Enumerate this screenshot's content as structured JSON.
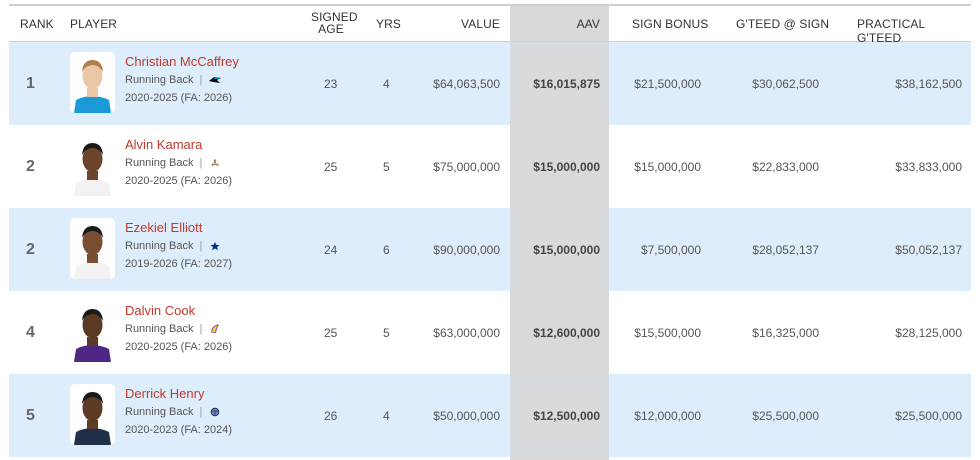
{
  "headers": {
    "rank": "RANK",
    "player": "PLAYER",
    "signed_age_line1": "SIGNED",
    "signed_age_line2": "AGE",
    "yrs": "YRS",
    "value": "VALUE",
    "aav": "AAV",
    "sign_bonus": "SIGN BONUS",
    "gteed_sign": "G'TEED @ SIGN",
    "practical_gteed": "PRACTICAL G'TEED"
  },
  "rows": [
    {
      "rank": "1",
      "name": "Christian McCaffrey",
      "position": "Running Back",
      "years": "2020-2025 (FA: 2026)",
      "age": "23",
      "yrs": "4",
      "value": "$64,063,500",
      "aav": "$16,015,875",
      "sign_bonus": "$21,500,000",
      "gteed_sign": "$30,062,500",
      "practical_gteed": "$38,162,500",
      "team_icon": "panthers-logo-icon",
      "jersey": "#1a9ad6",
      "skin": "#e9c6a6",
      "hair": "#b07c4a"
    },
    {
      "rank": "2",
      "name": "Alvin Kamara",
      "position": "Running Back",
      "years": "2020-2025 (FA: 2026)",
      "age": "25",
      "yrs": "5",
      "value": "$75,000,000",
      "aav": "$15,000,000",
      "sign_bonus": "$15,000,000",
      "gteed_sign": "$22,833,000",
      "practical_gteed": "$33,833,000",
      "team_icon": "saints-fleur-de-lis-icon",
      "jersey": "#f2f2f2",
      "skin": "#6b4429",
      "hair": "#1a1a1a"
    },
    {
      "rank": "2",
      "name": "Ezekiel Elliott",
      "position": "Running Back",
      "years": "2019-2026 (FA: 2027)",
      "age": "24",
      "yrs": "6",
      "value": "$90,000,000",
      "aav": "$15,000,000",
      "sign_bonus": "$7,500,000",
      "gteed_sign": "$28,052,137",
      "practical_gteed": "$50,052,137",
      "team_icon": "cowboys-star-icon",
      "jersey": "#f2f2f2",
      "skin": "#7a4e30",
      "hair": "#1a1a1a"
    },
    {
      "rank": "4",
      "name": "Dalvin Cook",
      "position": "Running Back",
      "years": "2020-2025 (FA: 2026)",
      "age": "25",
      "yrs": "5",
      "value": "$63,000,000",
      "aav": "$12,600,000",
      "sign_bonus": "$15,500,000",
      "gteed_sign": "$16,325,000",
      "practical_gteed": "$28,125,000",
      "team_icon": "vikings-horn-icon",
      "jersey": "#4f2683",
      "skin": "#5a3a24",
      "hair": "#1a1a1a"
    },
    {
      "rank": "5",
      "name": "Derrick Henry",
      "position": "Running Back",
      "years": "2020-2023 (FA: 2024)",
      "age": "26",
      "yrs": "4",
      "value": "$50,000,000",
      "aav": "$12,500,000",
      "sign_bonus": "$12,000,000",
      "gteed_sign": "$25,500,000",
      "practical_gteed": "$25,500,000",
      "team_icon": "titans-logo-icon",
      "jersey": "#1f2f4a",
      "skin": "#5e3b24",
      "hair": "#1a1a1a"
    }
  ],
  "pipe": "|"
}
